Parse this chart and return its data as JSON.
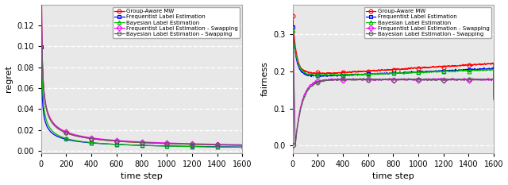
{
  "xlabel": "time step",
  "ylabel_left": "regret",
  "ylabel_right": "fairness",
  "xlim": [
    0,
    1600
  ],
  "ylim_left": [
    -0.002,
    0.14
  ],
  "ylim_right": [
    -0.02,
    0.38
  ],
  "yticks_left": [
    0.0,
    0.02,
    0.04,
    0.06,
    0.08,
    0.1,
    0.12
  ],
  "yticks_right": [
    0.0,
    0.1,
    0.2,
    0.3
  ],
  "xticks": [
    0,
    200,
    400,
    600,
    800,
    1000,
    1200,
    1400,
    1600
  ],
  "legend_labels": [
    "Group-Aware MW",
    "Frequentist Label Estimation",
    "Bayesian Label Estimation",
    "Frequentist Label Estimation - Swapping",
    "Bayesian Label Estimation - Swapping"
  ],
  "colors": [
    "#FF0000",
    "#0000FF",
    "#00BB00",
    "#FF00FF",
    "#606060"
  ],
  "markers": [
    "o",
    "s",
    "^",
    "D",
    "o"
  ],
  "n_points": 1600,
  "bg_color": "#e8e8e8",
  "grid_color": "#ffffff",
  "marker_every": 200,
  "marker_size": 3.5,
  "linewidth": 0.9
}
